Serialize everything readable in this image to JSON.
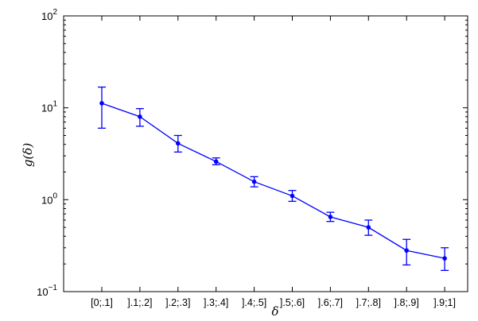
{
  "chart_data": {
    "type": "line",
    "title": "",
    "xlabel": "δ",
    "ylabel": "g(δ)",
    "yscale": "log",
    "ylim": [
      0.1,
      100
    ],
    "grid": false,
    "categories": [
      "[0;.1]",
      "].1;.2]",
      "].2;.3]",
      "].3;.4]",
      "].4;.5]",
      "].5;.6]",
      "].6;.7]",
      "].7;.8]",
      "].8;.9]",
      "].9;1]"
    ],
    "series": [
      {
        "values": [
          11.2,
          8.0,
          4.1,
          2.6,
          1.57,
          1.1,
          0.65,
          0.5,
          0.28,
          0.23
        ],
        "lower": [
          6.0,
          6.3,
          3.3,
          2.4,
          1.38,
          0.96,
          0.58,
          0.41,
          0.195,
          0.17
        ],
        "upper": [
          16.8,
          9.8,
          5.0,
          2.85,
          1.78,
          1.26,
          0.73,
          0.6,
          0.37,
          0.3
        ],
        "color": "#0000ff"
      }
    ],
    "y_ticks": [
      {
        "base": "10",
        "exp": "−1",
        "value": 0.1
      },
      {
        "base": "10",
        "exp": "0",
        "value": 1
      },
      {
        "base": "10",
        "exp": "1",
        "value": 10
      },
      {
        "base": "10",
        "exp": "2",
        "value": 100
      }
    ]
  }
}
